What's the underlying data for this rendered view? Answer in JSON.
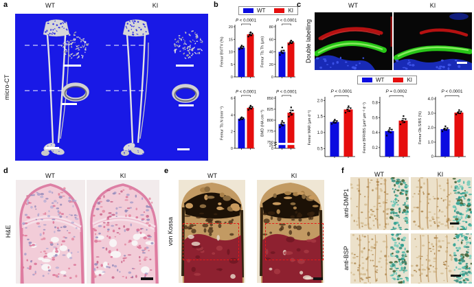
{
  "colors": {
    "wt_bar": "#0b0be0",
    "ki_bar": "#e60d0d",
    "microct_bg": "#1919e6",
    "dashed_box": "#e81818"
  },
  "panels": {
    "a": {
      "letter": "a",
      "row_label": "micro-CT",
      "columns": [
        "WT",
        "KI"
      ]
    },
    "b": {
      "letter": "b",
      "legend": [
        "WT",
        "KI"
      ]
    },
    "c": {
      "letter": "c",
      "row_label": "Double labelling",
      "columns": [
        "WT",
        "KI"
      ],
      "legend": [
        "WT",
        "KI"
      ]
    },
    "d": {
      "letter": "d",
      "row_label": "H&E",
      "columns": [
        "WT",
        "KI"
      ]
    },
    "e": {
      "letter": "e",
      "row_label": "von Kossa",
      "columns": [
        "WT",
        "KI"
      ]
    },
    "f": {
      "letter": "f",
      "row_labels": [
        "anti-DMP1",
        "anti-BSP"
      ],
      "columns": [
        "WT",
        "KI"
      ]
    }
  },
  "chart_data": [
    {
      "id": "b1",
      "type": "bar",
      "ylabel": "Femur BV/TV (%)",
      "p_label": "P < 0.0001",
      "categories": [
        "WT",
        "KI"
      ],
      "values": [
        11.7,
        17.0
      ],
      "error": [
        0.5,
        0.6
      ],
      "points": [
        [
          11.0,
          11.4,
          11.7,
          12.1,
          12.5
        ],
        [
          16.1,
          16.6,
          16.9,
          17.3,
          17.8
        ]
      ],
      "ticks": [
        "20",
        "15",
        "10",
        "5",
        "0"
      ],
      "ylim": [
        0,
        20
      ],
      "colors": [
        "#0b0be0",
        "#e60d0d"
      ]
    },
    {
      "id": "b2",
      "type": "bar",
      "ylabel": "Femur Tb.Th (μm)",
      "p_label": "P < 0.0001",
      "categories": [
        "WT",
        "KI"
      ],
      "values": [
        40,
        55
      ],
      "error": [
        2.5,
        2
      ],
      "points": [
        [
          35,
          38,
          40,
          42,
          47
        ],
        [
          52,
          54,
          55,
          56,
          58
        ]
      ],
      "ticks": [
        "80",
        "60",
        "40",
        "20",
        "0"
      ],
      "ylim": [
        0,
        80
      ],
      "colors": [
        "#0b0be0",
        "#e60d0d"
      ]
    },
    {
      "id": "b3",
      "type": "bar",
      "ylabel": "Femur Tb.N (mm⁻¹)",
      "p_label": "P < 0.0001",
      "categories": [
        "WT",
        "KI"
      ],
      "values": [
        3.55,
        4.85
      ],
      "error": [
        0.12,
        0.15
      ],
      "points": [
        [
          3.38,
          3.48,
          3.55,
          3.62,
          3.72
        ],
        [
          4.6,
          4.75,
          4.85,
          4.95,
          5.1
        ]
      ],
      "ticks": [
        "6",
        "4",
        "2",
        "0"
      ],
      "ylim": [
        0,
        6
      ],
      "colors": [
        "#0b0be0",
        "#e60d0d"
      ]
    },
    {
      "id": "b4",
      "type": "bar",
      "ylabel": "BMD (HA cm⁻³)",
      "p_label": "P < 0.0001",
      "categories": [
        "WT",
        "KI"
      ],
      "values": [
        791,
        817
      ],
      "error": [
        4,
        6
      ],
      "points": [
        [
          784,
          788,
          791,
          794,
          798
        ],
        [
          808,
          813,
          817,
          822,
          829
        ]
      ],
      "ticks": [
        "850",
        "825",
        "800",
        "775",
        "750"
      ],
      "ylim": [
        750,
        850
      ],
      "axis_break": {
        "upper_range": [
          750,
          850
        ],
        "lower_ticks": [
          "25",
          "0"
        ],
        "lower_max": 25
      },
      "colors": [
        "#0b0be0",
        "#e60d0d"
      ]
    },
    {
      "id": "c1",
      "type": "bar",
      "ylabel": "Femur MAR (μm d⁻¹)",
      "p_label": "P < 0.0001",
      "categories": [
        "WT",
        "KI"
      ],
      "values": [
        1.33,
        1.72
      ],
      "error": [
        0.04,
        0.06
      ],
      "points": [
        [
          1.27,
          1.31,
          1.33,
          1.36,
          1.4
        ],
        [
          1.62,
          1.67,
          1.72,
          1.76,
          1.82
        ]
      ],
      "ticks": [
        "2.0",
        "1.5",
        "1.0",
        "0.5"
      ],
      "ylim": [
        0.25,
        2.05
      ],
      "colors": [
        "#0b0be0",
        "#e60d0d"
      ]
    },
    {
      "id": "c2",
      "type": "bar",
      "ylabel": "Femur BFR/BS (μm³ μm⁻² d⁻¹)",
      "p_label": "P = 0.0002",
      "categories": [
        "WT",
        "KI"
      ],
      "values": [
        0.42,
        0.56
      ],
      "error": [
        0.02,
        0.03
      ],
      "points": [
        [
          0.36,
          0.4,
          0.42,
          0.44,
          0.46
        ],
        [
          0.51,
          0.54,
          0.56,
          0.58,
          0.62
        ]
      ],
      "ticks": [
        "0.8",
        "0.6",
        "0.4",
        "0.2"
      ],
      "ylim": [
        0.08,
        0.85
      ],
      "colors": [
        "#0b0be0",
        "#e60d0d"
      ]
    },
    {
      "id": "c3",
      "type": "bar",
      "ylabel": "Femur Ob.S/BS (%)",
      "p_label": "P < 0.0001",
      "categories": [
        "WT",
        "KI"
      ],
      "values": [
        1.9,
        3.05
      ],
      "error": [
        0.08,
        0.08
      ],
      "points": [
        [
          1.75,
          1.85,
          1.9,
          1.97,
          2.1
        ],
        [
          2.92,
          3.0,
          3.05,
          3.12,
          3.22
        ]
      ],
      "ticks": [
        "4.0",
        "3.0",
        "2.0",
        "1.0",
        "0"
      ],
      "ylim": [
        0,
        4.0
      ],
      "colors": [
        "#0b0be0",
        "#e60d0d"
      ]
    }
  ]
}
